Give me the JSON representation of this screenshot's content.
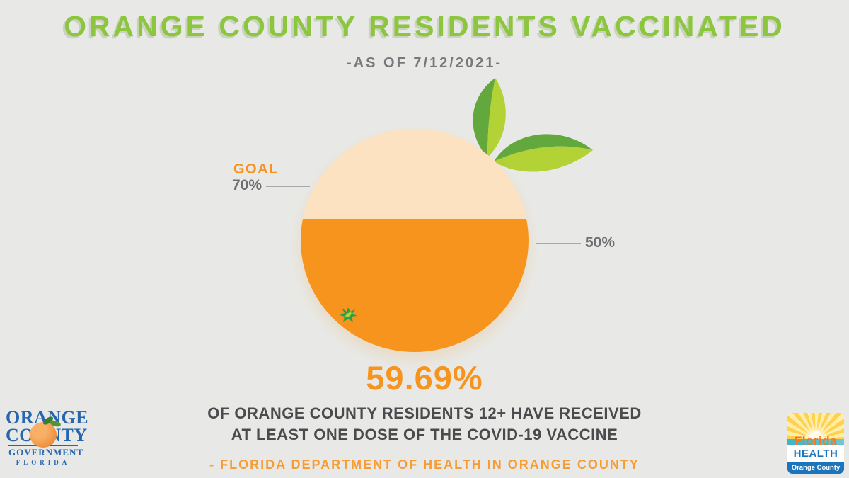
{
  "page": {
    "background": "#E8E9E7"
  },
  "header": {
    "title": "ORANGE COUNTY RESIDENTS VACCINATED",
    "subtitle": "-AS OF 7/12/2021-"
  },
  "chart_data": {
    "type": "pie",
    "title": "ORANGE COUNTY RESIDENTS VACCINATED",
    "subtitle": "-AS OF 7/12/2021-",
    "value": 59.69,
    "value_label": "59.69%",
    "goal": 70,
    "goal_label": "GOAL",
    "goal_tick_label": "70%",
    "reference": 50,
    "reference_tick_label": "50%",
    "series": [
      {
        "name": "Orange County residents 12+ with at least one COVID-19 vaccine dose",
        "values": [
          59.69
        ]
      }
    ],
    "annotations": [
      "OF ORANGE COUNTY RESIDENTS 12+ HAVE RECEIVED",
      "AT LEAST ONE DOSE OF THE COVID-19 VACCINE",
      "- FLORIDA DEPARTMENT OF HEALTH IN ORANGE COUNTY"
    ],
    "colors": {
      "filled": "#F6941E",
      "unfilled": "#FDE2C2",
      "leaf_dark": "#63A83D",
      "leaf_light": "#B2D235",
      "title_green": "#8CC63F",
      "label_gray": "#6D6E71",
      "goal_orange": "#F6921E"
    }
  },
  "stat": {
    "value": "59.69%",
    "line1": "OF ORANGE COUNTY RESIDENTS 12+ HAVE RECEIVED",
    "line2": "AT LEAST ONE DOSE OF THE COVID-19 VACCINE",
    "source": "- FLORIDA DEPARTMENT OF HEALTH IN ORANGE COUNTY"
  },
  "logos": {
    "county": {
      "line1": "ORANGE",
      "line2": "COUNTY",
      "line3": "GOVERNMENT",
      "line4": "FLORIDA"
    },
    "health": {
      "line1": "Florida",
      "line2": "HEALTH",
      "line3": "Orange County"
    }
  }
}
